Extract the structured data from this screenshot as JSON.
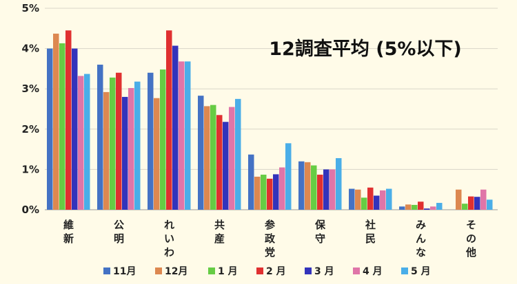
{
  "chart_data": {
    "type": "bar",
    "title": "12調査平均 (5%以下)",
    "ylim": [
      0,
      5
    ],
    "yticks": [
      0,
      1,
      2,
      3,
      4,
      5
    ],
    "ytick_labels": [
      "0%",
      "1%",
      "2%",
      "3%",
      "4%",
      "5%"
    ],
    "grid": true,
    "legend_position": "bottom",
    "categories": [
      "維新",
      "公明",
      "れいわ",
      "共産",
      "参政党",
      "保守",
      "社民",
      "みんな",
      "その他"
    ],
    "series": [
      {
        "name": "11月",
        "color": "#4472c4",
        "values": [
          4.0,
          3.6,
          3.4,
          2.83,
          1.37,
          1.2,
          0.52,
          0.08,
          0.0
        ]
      },
      {
        "name": "12月",
        "color": "#dd8850",
        "values": [
          4.37,
          2.92,
          2.77,
          2.57,
          0.82,
          1.18,
          0.5,
          0.13,
          0.5
        ]
      },
      {
        "name": "1 月",
        "color": "#66cc44",
        "values": [
          4.13,
          3.28,
          3.48,
          2.6,
          0.87,
          1.1,
          0.3,
          0.12,
          0.15
        ]
      },
      {
        "name": "2 月",
        "color": "#e03030",
        "values": [
          4.45,
          3.4,
          4.45,
          2.35,
          0.77,
          0.87,
          0.55,
          0.2,
          0.33
        ]
      },
      {
        "name": "3 月",
        "color": "#3333bb",
        "values": [
          4.0,
          2.8,
          4.07,
          2.18,
          0.88,
          1.0,
          0.35,
          0.03,
          0.32
        ]
      },
      {
        "name": "4 月",
        "color": "#e075a8",
        "values": [
          3.32,
          3.02,
          3.68,
          2.55,
          1.05,
          1.0,
          0.48,
          0.08,
          0.5
        ]
      },
      {
        "name": "5 月",
        "color": "#4aaee8",
        "values": [
          3.37,
          3.18,
          3.68,
          2.75,
          1.65,
          1.28,
          0.52,
          0.17,
          0.25
        ]
      }
    ]
  }
}
